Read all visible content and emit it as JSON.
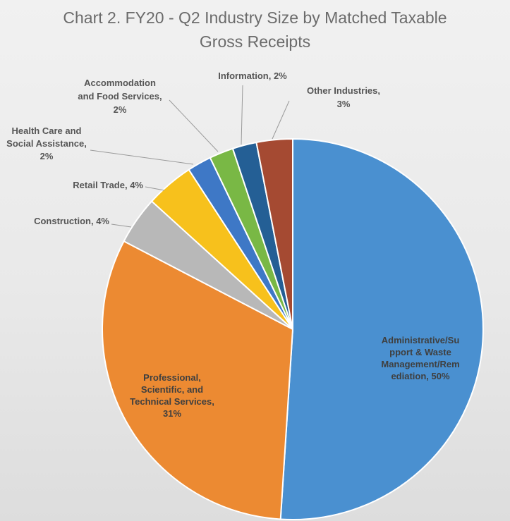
{
  "chart_data": {
    "type": "pie",
    "title": [
      "Chart 2. FY20 - Q2 Industry Size by Matched Taxable",
      "Gross Receipts"
    ],
    "start_angle_deg": 0,
    "direction": "clockwise",
    "slices": [
      {
        "name": "Administrative/Support & Waste Management/Remediation",
        "value": 50,
        "color": "#4a90d0",
        "label_lines": [
          "Administrative/Su",
          "pport & Waste",
          "Management/Rem",
          "ediation, 50%"
        ]
      },
      {
        "name": "Professional, Scientific, and Technical Services",
        "value": 31,
        "color": "#ec8a32",
        "label_lines": [
          "Professional,",
          "Scientific, and",
          "Technical Services,",
          "31%"
        ]
      },
      {
        "name": "Construction",
        "value": 4,
        "color": "#b8b8b8",
        "label_lines": [
          "Construction, 4%"
        ]
      },
      {
        "name": "Retail Trade",
        "value": 4,
        "color": "#f7c11c",
        "label_lines": [
          "Retail Trade, 4%"
        ]
      },
      {
        "name": "Health Care and Social Assistance",
        "value": 2,
        "color": "#3e78c6",
        "label_lines": [
          "Health Care and",
          "Social Assistance,",
          "2%"
        ]
      },
      {
        "name": "Accommodation and Food Services",
        "value": 2,
        "color": "#79b845",
        "label_lines": [
          "Accommodation",
          "and Food Services,",
          "2%"
        ]
      },
      {
        "name": "Information",
        "value": 2,
        "color": "#245f95",
        "label_lines": [
          "Information, 2%"
        ]
      },
      {
        "name": "Other Industries",
        "value": 3,
        "color": "#a54a32",
        "label_lines": [
          "Other Industries,",
          "3%"
        ]
      }
    ],
    "legend": "none",
    "labels": "category name and percent"
  }
}
